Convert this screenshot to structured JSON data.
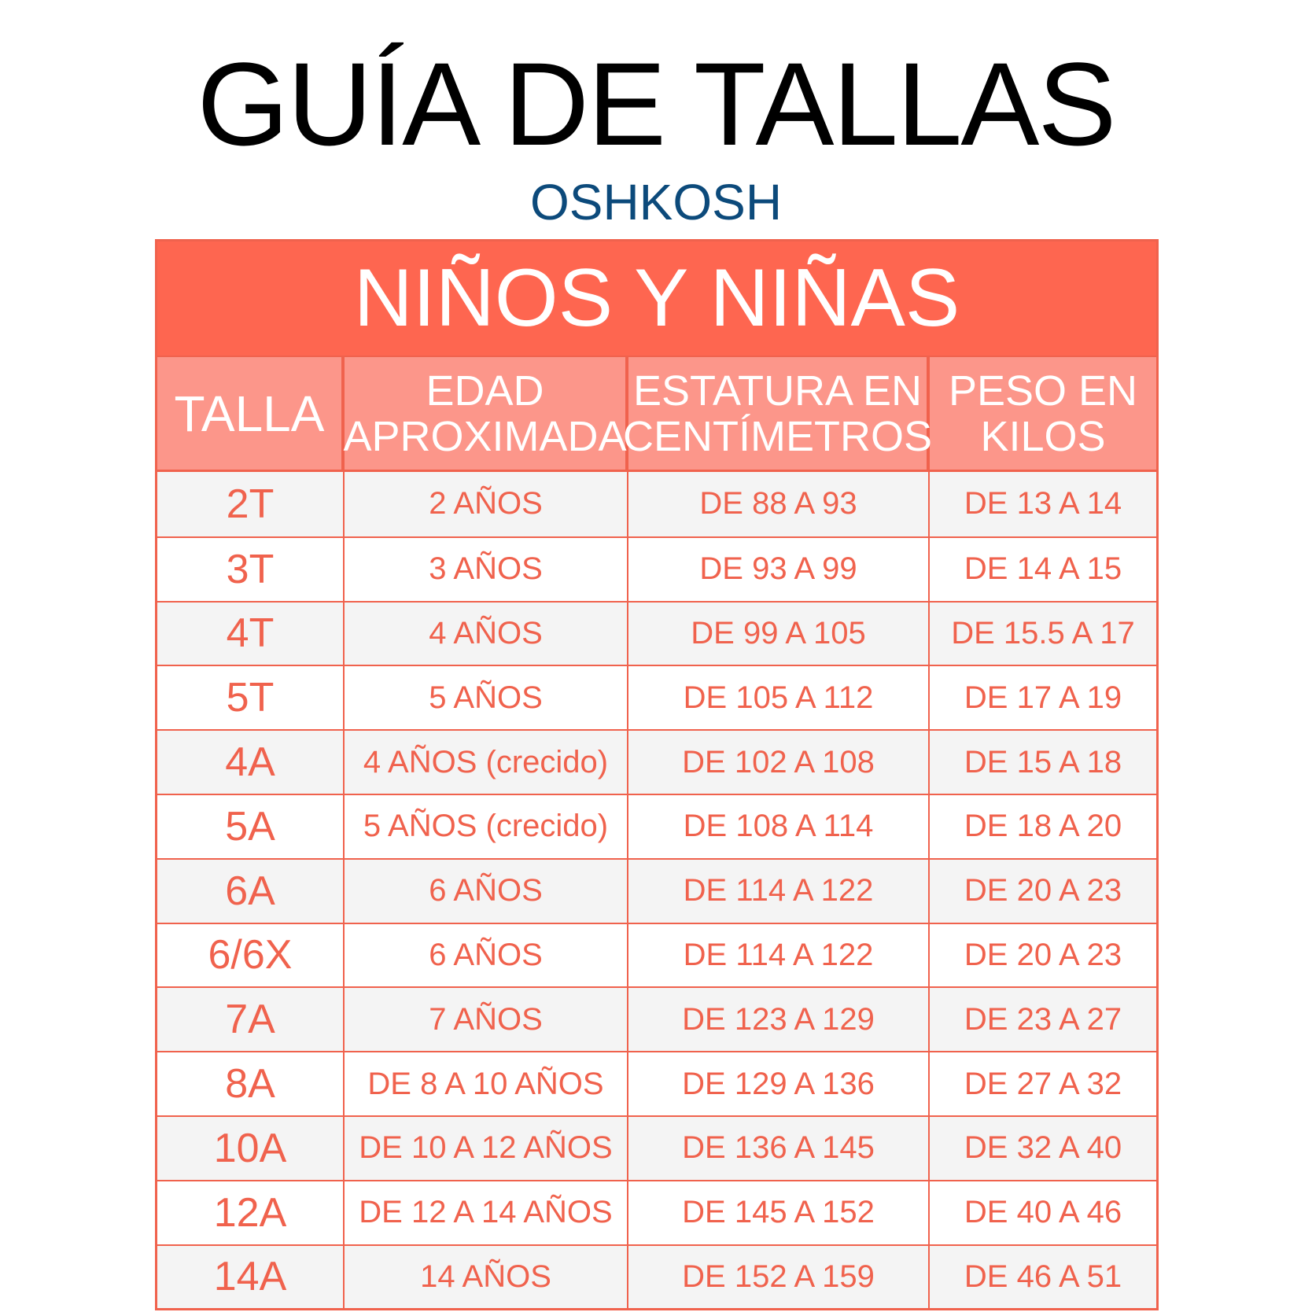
{
  "title": "GUÍA DE TALLAS",
  "brand": "OSHKOSH",
  "section": "NIÑOS Y NIÑAS",
  "headers": [
    "TALLA",
    "EDAD APROXIMADA",
    "ESTATURA EN CENTÍMETROS",
    "PESO EN KILOS"
  ],
  "rows": [
    [
      "2T",
      "2 AÑOS",
      "DE 88 A 93",
      "DE 13 A 14"
    ],
    [
      "3T",
      "3 AÑOS",
      "DE 93 A 99",
      "DE 14 A 15"
    ],
    [
      "4T",
      "4 AÑOS",
      "DE 99 A 105",
      "DE 15.5 A 17"
    ],
    [
      "5T",
      "5 AÑOS",
      "DE 105 A 112",
      "DE 17 A 19"
    ],
    [
      "4A",
      "4 AÑOS (crecido)",
      "DE 102 A 108",
      "DE 15 A 18"
    ],
    [
      "5A",
      "5 AÑOS (crecido)",
      "DE 108 A 114",
      "DE 18 A 20"
    ],
    [
      "6A",
      "6 AÑOS",
      "DE 114 A 122",
      "DE 20 A 23"
    ],
    [
      "6/6X",
      "6 AÑOS",
      "DE 114 A 122",
      "DE 20 A 23"
    ],
    [
      "7A",
      "7 AÑOS",
      "DE 123 A 129",
      "DE 23 A 27"
    ],
    [
      "8A",
      "DE 8 A 10 AÑOS",
      "DE 129 A 136",
      "DE 27 A 32"
    ],
    [
      "10A",
      "DE 10 A 12 AÑOS",
      "DE 136 A 145",
      "DE 32 A 40"
    ],
    [
      "12A",
      "DE 12 A 14 AÑOS",
      "DE 145 A 152",
      "DE 40 A 46"
    ],
    [
      "14A",
      "14 AÑOS",
      "DE 152 A 159",
      "DE 46 A 51"
    ]
  ],
  "colors": {
    "band": "#fe6650",
    "header": "#fc968a",
    "text": "#f0624d",
    "brand": "#0c4a7b"
  }
}
